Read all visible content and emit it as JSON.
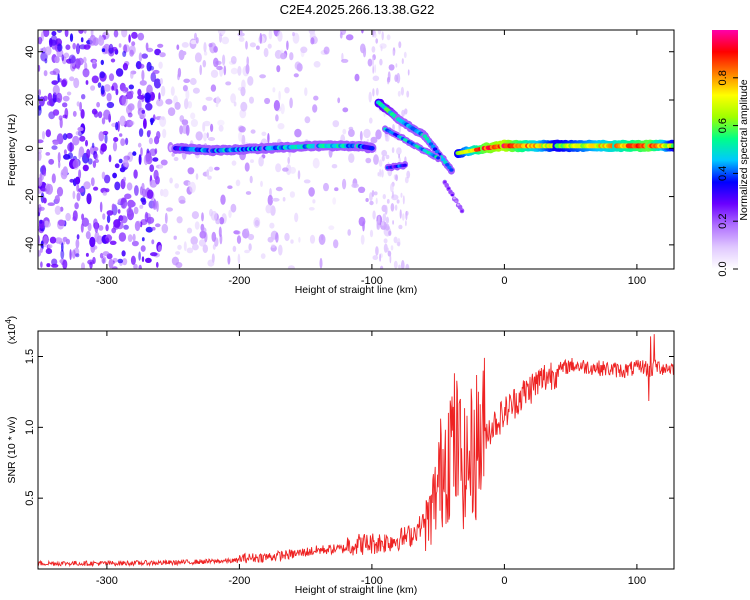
{
  "title": "C2E4.2025.266.13.38.G22",
  "chart_data": [
    {
      "type": "heatmap",
      "xlabel": "Height of straight line (km)",
      "ylabel": "Frequency (Hz)",
      "xlim": [
        -352,
        128
      ],
      "ylim": [
        -50,
        49
      ],
      "x_ticks": [
        -300,
        -200,
        -100,
        0,
        100
      ],
      "y_ticks": [
        -40,
        -20,
        0,
        20,
        40
      ],
      "colorbar": {
        "label": "Normalized spectral amplitude",
        "range": [
          0,
          1
        ],
        "ticks": [
          0.0,
          0.2,
          0.4,
          0.6,
          0.8
        ],
        "tick_labels": [
          "0.0",
          "0.2",
          "0.4",
          "0.6",
          "0.8"
        ],
        "colors": [
          "#ffffff",
          "#e0c8ff",
          "#b070ff",
          "#6a00ff",
          "#0000ff",
          "#00c8ff",
          "#00ff88",
          "#a0ff00",
          "#ffff00",
          "#ff8000",
          "#ff0000",
          "#ff00aa"
        ]
      },
      "ridge": [
        {
          "x": -248,
          "y": 0,
          "amp": 0.35
        },
        {
          "x": -220,
          "y": -1,
          "amp": 0.4
        },
        {
          "x": -180,
          "y": 0,
          "amp": 0.4
        },
        {
          "x": -140,
          "y": 1,
          "amp": 0.45
        },
        {
          "x": -110,
          "y": 1,
          "amp": 0.45
        },
        {
          "x": -100,
          "y": 0,
          "amp": 0.3
        },
        {
          "x": -95,
          "y": 19,
          "amp": 0.55
        },
        {
          "x": -80,
          "y": 12,
          "amp": 0.45
        },
        {
          "x": -60,
          "y": 5,
          "amp": 0.45
        },
        {
          "x": -40,
          "y": -9,
          "amp": 0.4
        },
        {
          "x": -35,
          "y": -2,
          "amp": 0.6
        },
        {
          "x": -15,
          "y": 0,
          "amp": 0.85
        },
        {
          "x": 0,
          "y": 1,
          "amp": 0.9
        },
        {
          "x": 40,
          "y": 1,
          "amp": 0.6
        },
        {
          "x": 85,
          "y": 1,
          "amp": 0.75
        },
        {
          "x": 110,
          "y": 1,
          "amp": 0.85
        },
        {
          "x": 128,
          "y": 1,
          "amp": 0.6
        }
      ]
    },
    {
      "type": "line",
      "xlabel": "Height of straight line (km)",
      "ylabel": "SNR (10 * v/v)",
      "scale_label": "(x10",
      "scale_exp": "4",
      "scale_close": ")",
      "xlim": [
        -352,
        128
      ],
      "ylim": [
        0,
        16800
      ],
      "x_ticks": [
        -300,
        -200,
        -100,
        0,
        100
      ],
      "y_ticks": [
        5000,
        10000,
        15000
      ],
      "y_tick_labels": [
        "0.5",
        "1.0",
        "1.5"
      ],
      "color": "#ee2222",
      "series": [
        {
          "x": [
            -352,
            -300,
            -250,
            -200,
            -180,
            -160,
            -140,
            -120,
            -100,
            -90,
            -80,
            -70,
            -60,
            -55,
            -50,
            -45,
            -40,
            -35,
            -30,
            -25,
            -20,
            -15,
            -10,
            -5,
            0,
            5,
            10,
            20,
            30,
            40,
            50,
            60,
            70,
            80,
            90,
            100,
            105,
            110,
            115,
            120,
            128
          ],
          "y": [
            400,
            400,
            450,
            600,
            700,
            900,
            1200,
            1300,
            1400,
            1500,
            1700,
            2000,
            3000,
            4000,
            6000,
            8000,
            9000,
            8500,
            7000,
            8000,
            9000,
            9500,
            10000,
            10500,
            11000,
            11500,
            12000,
            12800,
            13500,
            14000,
            14400,
            14300,
            14200,
            14100,
            14000,
            14200,
            14300,
            14000,
            14300,
            14200,
            14200
          ]
        }
      ]
    }
  ]
}
